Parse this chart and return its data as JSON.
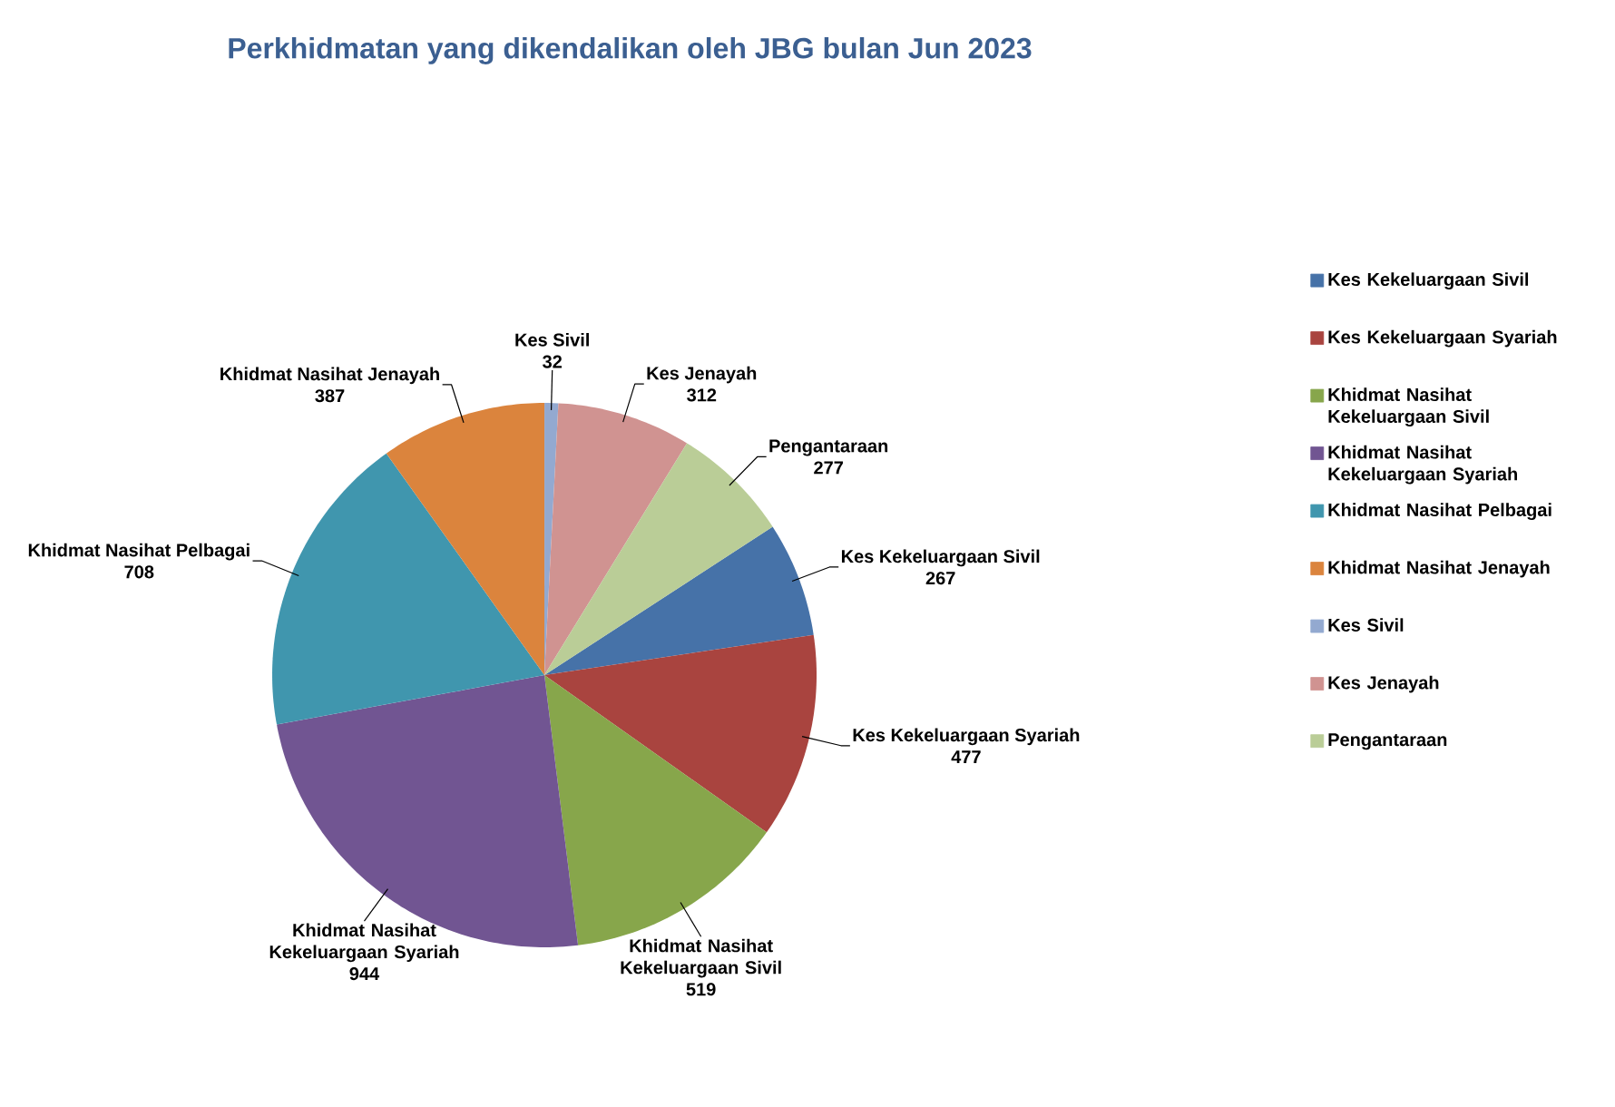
{
  "chart_data": {
    "type": "pie",
    "title": "Perkhidmatan yang dikendalikan oleh JBG bulan Jun 2023",
    "categories": [
      "Kes Kekeluargaan Sivil",
      "Kes Kekeluargaan Syariah",
      "Khidmat Nasihat Kekeluargaan Sivil",
      "Khidmat Nasihat Kekeluargaan Syariah",
      "Khidmat Nasihat Pelbagai",
      "Khidmat Nasihat Jenayah",
      "Kes Sivil",
      "Kes Jenayah",
      "Pengantaraan"
    ],
    "values": [
      267,
      477,
      519,
      944,
      708,
      387,
      32,
      312,
      277
    ],
    "colors": [
      "#4672a8",
      "#a9443f",
      "#87a64b",
      "#715592",
      "#4096ae",
      "#db843d",
      "#93a9d0",
      "#d09391",
      "#bacd97"
    ],
    "data_labels": true,
    "legend": "right"
  }
}
